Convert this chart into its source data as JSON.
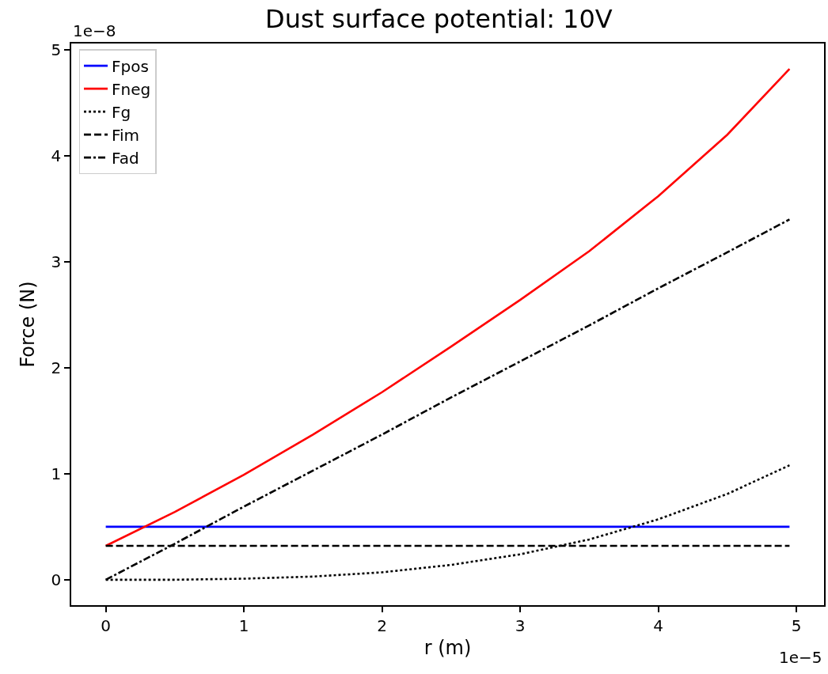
{
  "chart_data": {
    "type": "line",
    "title": "Dust surface potential: 10V",
    "xlabel": "r (m)",
    "ylabel": "Force (N)",
    "x": [
      0,
      0.5,
      1,
      1.5,
      2,
      2.5,
      3,
      3.5,
      4,
      4.5,
      4.95
    ],
    "series": [
      {
        "name": "Fpos",
        "color": "#0000ff",
        "line_style": "solid",
        "values": [
          0.5,
          0.5,
          0.5,
          0.5,
          0.5,
          0.5,
          0.5,
          0.5,
          0.5,
          0.5,
          0.5
        ]
      },
      {
        "name": "Fneg",
        "color": "#ff0000",
        "line_style": "solid",
        "values": [
          0.32,
          0.64,
          0.99,
          1.37,
          1.77,
          2.2,
          2.64,
          3.1,
          3.62,
          4.2,
          4.82
        ]
      },
      {
        "name": "Fg",
        "color": "#000000",
        "line_style": "dotted",
        "values": [
          0,
          0,
          0.01,
          0.03,
          0.07,
          0.14,
          0.24,
          0.38,
          0.57,
          0.81,
          1.08
        ]
      },
      {
        "name": "Fim",
        "color": "#000000",
        "line_style": "dashed",
        "values": [
          0.32,
          0.32,
          0.32,
          0.32,
          0.32,
          0.32,
          0.32,
          0.32,
          0.32,
          0.32,
          0.32
        ]
      },
      {
        "name": "Fad",
        "color": "#000000",
        "line_style": "dashdot",
        "values": [
          0,
          0.34,
          0.69,
          1.03,
          1.37,
          1.72,
          2.06,
          2.4,
          2.75,
          3.09,
          3.4
        ]
      }
    ],
    "xlim": [
      -0.25,
      5.2
    ],
    "xticks": [
      0,
      1,
      2,
      3,
      4,
      5
    ],
    "ylim": [
      -0.24,
      5.06
    ],
    "yticks": [
      0,
      1,
      2,
      3,
      4,
      5
    ],
    "annotations": [
      "1e−8",
      "1e−5"
    ],
    "grid": false,
    "legend": "top left",
    "marker": "none"
  }
}
